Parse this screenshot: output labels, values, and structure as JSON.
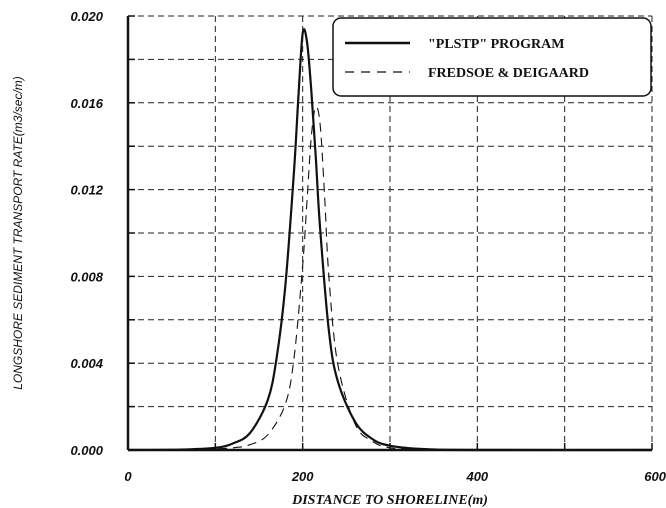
{
  "chart_data": {
    "type": "line",
    "xlabel": "DISTANCE TO SHORELINE(m)",
    "ylabel": "LONGSHORE SEDIMENT TRANSPORT RATE(m3/sec/m)",
    "xlim": [
      0,
      600
    ],
    "ylim": [
      0,
      0.02
    ],
    "x_ticks": [
      "0",
      "200",
      "400",
      "600"
    ],
    "y_ticks": [
      "0.000",
      "0.004",
      "0.008",
      "0.012",
      "0.016",
      "0.020"
    ],
    "grid": true,
    "legend_position": "top-right",
    "series": [
      {
        "name": "\"PLSTP\" PROGRAM",
        "style": "solid",
        "x": [
          0,
          60,
          100,
          120,
          140,
          160,
          170,
          180,
          190,
          195,
          200,
          205,
          210,
          215,
          220,
          230,
          240,
          260,
          280,
          300,
          340,
          400,
          600
        ],
        "y": [
          0.0,
          2e-05,
          0.0001,
          0.0003,
          0.0008,
          0.0023,
          0.0042,
          0.0075,
          0.0128,
          0.0162,
          0.0192,
          0.0188,
          0.0165,
          0.0135,
          0.0102,
          0.0055,
          0.0032,
          0.0013,
          0.0005,
          0.0002,
          4e-05,
          0.0,
          0.0
        ]
      },
      {
        "name": "FREDSOE & DEIGAARD",
        "style": "dashed",
        "x": [
          0,
          80,
          120,
          140,
          160,
          180,
          190,
          200,
          205,
          210,
          215,
          220,
          225,
          230,
          240,
          260,
          280,
          300,
          340,
          400,
          600
        ],
        "y": [
          0.0,
          2e-05,
          0.0001,
          0.00025,
          0.0007,
          0.0021,
          0.0042,
          0.0085,
          0.0115,
          0.0145,
          0.0158,
          0.015,
          0.0118,
          0.008,
          0.004,
          0.0012,
          0.0004,
          0.0001,
          2e-05,
          0.0,
          0.0
        ]
      }
    ]
  },
  "colors": {
    "axis": "#111111",
    "grid": "#222222",
    "line": "#111111"
  }
}
